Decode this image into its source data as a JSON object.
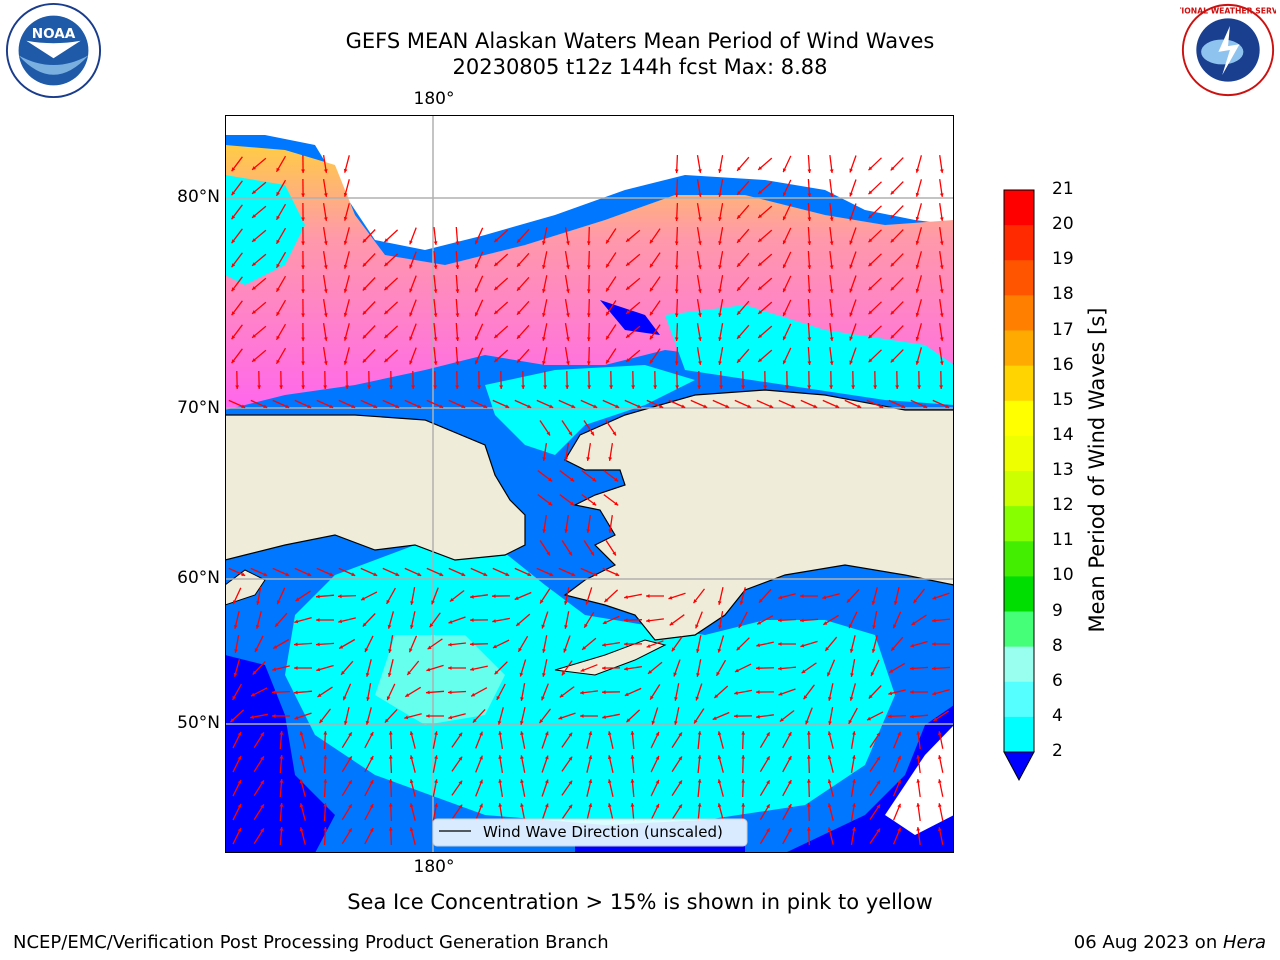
{
  "header": {
    "title_line1": "GEFS MEAN Alaskan Waters Mean Period of Wind Waves",
    "title_line2": "20230805 t12z 144h fcst   Max: 8.88"
  },
  "map": {
    "lat_labels": [
      "80°N",
      "70°N",
      "60°N",
      "50°N"
    ],
    "lon_label_top": "180°",
    "lon_label_bottom": "180°",
    "legend_label": "Wind Wave Direction (unscaled)",
    "land_color": "#efedd9",
    "arrow_color": "#ff0000",
    "grid_color": "#b0b0b0"
  },
  "colorbar": {
    "label": "Mean Period of Wind Waves [s]",
    "ticks": [
      "21",
      "20",
      "19",
      "18",
      "17",
      "16",
      "15",
      "14",
      "13",
      "12",
      "11",
      "10",
      "9",
      "8",
      "6",
      "4",
      "2"
    ],
    "colors": [
      "#ff0000",
      "#ff2a00",
      "#ff5500",
      "#ff8000",
      "#ffaa00",
      "#ffd400",
      "#ffff00",
      "#eeff00",
      "#ccff00",
      "#88ff00",
      "#44ee00",
      "#00dd00",
      "#44ff77",
      "#99ffee",
      "#55ffff",
      "#00ffff",
      "#0088ff"
    ],
    "extend_color": "#0000ff"
  },
  "logos": {
    "noaa_text": "NOAA",
    "nws_text": "NATIONAL WEATHER SERVICE"
  },
  "footer": {
    "note": "Sea Ice Concentration > 15% is shown in pink to yellow",
    "left": "NCEP/EMC/Verification Post Processing Product Generation Branch",
    "right_date": "06 Aug 2023 on ",
    "right_host": "Hera"
  }
}
